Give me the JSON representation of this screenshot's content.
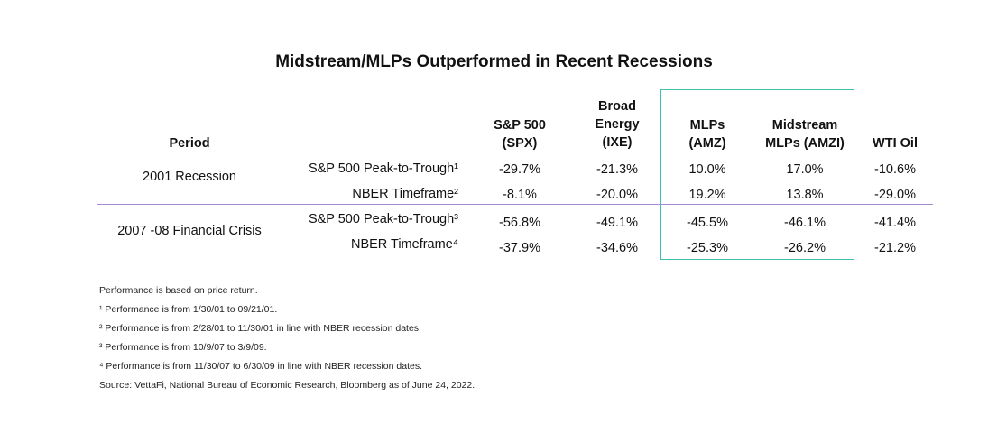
{
  "title": "Midstream/MLPs Outperformed in Recent Recessions",
  "colors": {
    "highlight_box": "#3fbfb0",
    "divider": "#a78ad6"
  },
  "headers": {
    "period": "Period",
    "spx": "S&P 500\n(SPX)",
    "ixe": "Broad\nEnergy\n(IXE)",
    "amz": "MLPs\n(AMZ)",
    "amzi": "Midstream\nMLPs (AMZI)",
    "wti": "WTI Oil"
  },
  "groups": [
    {
      "period": "2001 Recession",
      "rows": [
        {
          "label": "S&P 500 Peak-to-Trough¹",
          "spx": "-29.7%",
          "ixe": "-21.3%",
          "amz": "10.0%",
          "amzi": "17.0%",
          "wti": "-10.6%"
        },
        {
          "label": "NBER Timeframe²",
          "spx": "-8.1%",
          "ixe": "-20.0%",
          "amz": "19.2%",
          "amzi": "13.8%",
          "wti": "-29.0%"
        }
      ]
    },
    {
      "period": "2007 -08 Financial Crisis",
      "rows": [
        {
          "label": "S&P 500 Peak-to-Trough³",
          "spx": "-56.8%",
          "ixe": "-49.1%",
          "amz": "-45.5%",
          "amzi": "-46.1%",
          "wti": "-41.4%"
        },
        {
          "label": "NBER Timeframe⁴",
          "spx": "-37.9%",
          "ixe": "-34.6%",
          "amz": "-25.3%",
          "amzi": "-26.2%",
          "wti": "-21.2%"
        }
      ]
    }
  ],
  "notes": [
    "Performance is based on price return.",
    "¹ Performance is from 1/30/01 to 09/21/01.",
    "² Performance is from 2/28/01 to 11/30/01 in line with NBER recession dates.",
    "³ Performance is from 10/9/07 to 3/9/09.",
    "⁴ Performance is from 11/30/07 to 6/30/09 in line with NBER recession dates.",
    "Source: VettaFi, National Bureau of Economic Research, Bloomberg as of June 24, 2022."
  ]
}
